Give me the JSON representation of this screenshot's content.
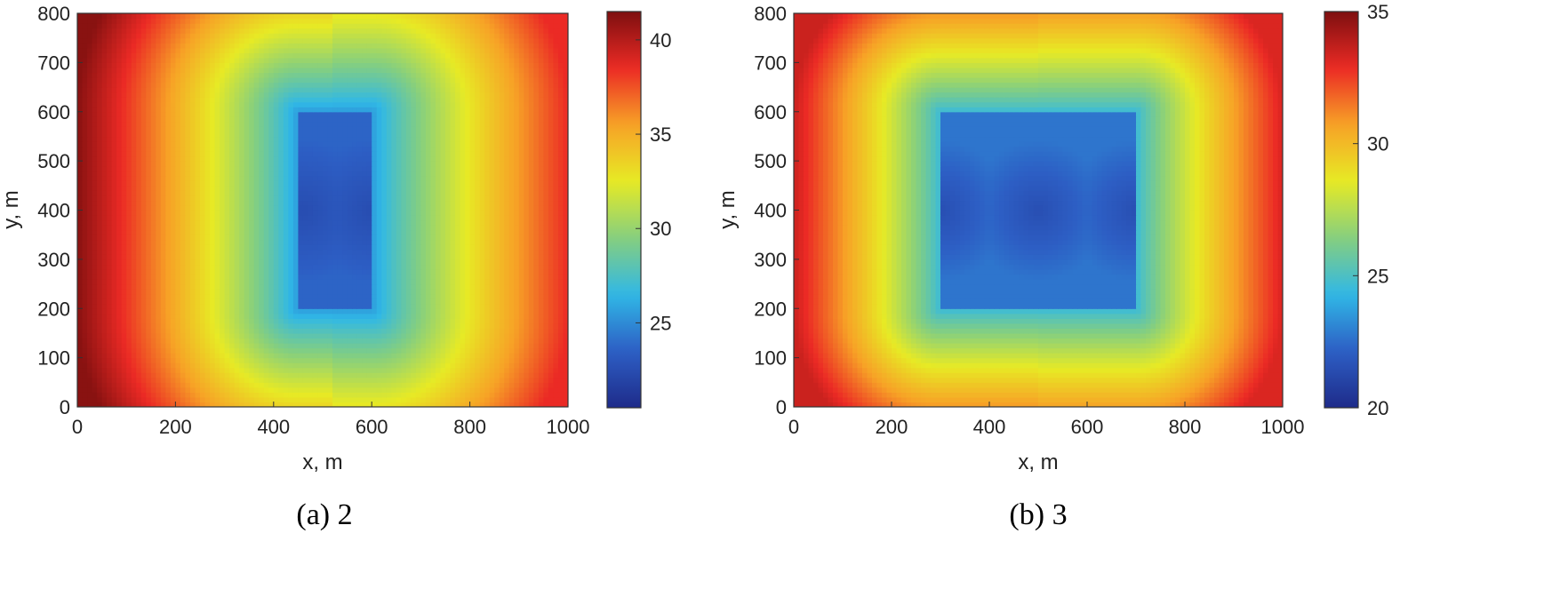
{
  "chart_data": [
    {
      "type": "heatmap",
      "caption": "(a) 2",
      "xlabel": "x, m",
      "ylabel": "y, m",
      "xlim": [
        0,
        1000
      ],
      "ylim": [
        0,
        800
      ],
      "x_ticks": [
        0,
        200,
        400,
        600,
        800,
        1000
      ],
      "y_ticks": [
        0,
        100,
        200,
        300,
        400,
        500,
        600,
        700,
        800
      ],
      "colorbar": {
        "min": 20.5,
        "max": 41.5,
        "ticks": [
          25,
          30,
          35,
          40
        ]
      },
      "grid": false,
      "field": {
        "blocks": [
          {
            "x": [
              450,
              600
            ],
            "y": [
              200,
              600
            ]
          }
        ],
        "min_sources": [
          [
            460,
            400
          ],
          [
            600,
            400
          ]
        ],
        "inner_value": 22.5,
        "far_left_value": 41.2,
        "far_right_value": 38.5
      }
    },
    {
      "type": "heatmap",
      "caption": "(b) 3",
      "xlabel": "x, m",
      "ylabel": "y, m",
      "xlim": [
        0,
        1000
      ],
      "ylim": [
        0,
        800
      ],
      "x_ticks": [
        0,
        200,
        400,
        600,
        800,
        1000
      ],
      "y_ticks": [
        0,
        100,
        200,
        300,
        400,
        500,
        600,
        700,
        800
      ],
      "colorbar": {
        "min": 20,
        "max": 35,
        "ticks": [
          20,
          25,
          30,
          35
        ]
      },
      "grid": false,
      "field": {
        "blocks": [
          {
            "x": [
              300,
              700
            ],
            "y": [
              200,
              600
            ]
          }
        ],
        "min_sources": [
          [
            300,
            400
          ],
          [
            500,
            400
          ],
          [
            700,
            400
          ]
        ],
        "inner_value": 21.5,
        "far_left_value": 33.5,
        "far_right_value": 33.2
      }
    }
  ],
  "colormap_anchors": [
    "#1e2b8a",
    "#2d5ec4",
    "#30b8e6",
    "#86cf7e",
    "#e7ea25",
    "#f7a226",
    "#eb2a25",
    "#7e0f0f"
  ]
}
